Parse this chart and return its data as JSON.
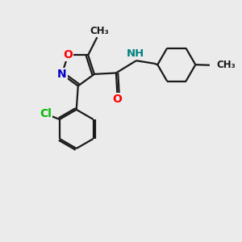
{
  "bg_color": "#ebebeb",
  "bond_color": "#1a1a1a",
  "bond_width": 1.6,
  "atom_colors": {
    "O": "#ff0000",
    "N_ring": "#0000cc",
    "N_amide": "#008080",
    "Cl": "#00bb00",
    "C": "#1a1a1a"
  },
  "xlim": [
    0,
    10
  ],
  "ylim": [
    0,
    10
  ]
}
